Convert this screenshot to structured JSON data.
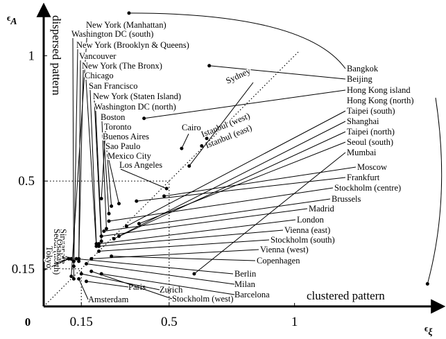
{
  "chart_data": {
    "type": "scatter",
    "x_label": {
      "symbol": "ϵ",
      "subscript": "ξ"
    },
    "y_label": {
      "symbol": "ϵ",
      "subscript": "A"
    },
    "origin_label": "0",
    "y_annotation": "dispersed pattern",
    "x_annotation": "clustered pattern",
    "xlim": [
      0,
      1.59
    ],
    "ylim": [
      0,
      1.2
    ],
    "xticks": [
      0.15,
      0.5,
      1
    ],
    "yticks": [
      0.15,
      0.5,
      1
    ],
    "grid": "dotted",
    "diagonal": true,
    "color": "#000000",
    "labels": [
      "New York (Manhattan)",
      "Washington DC (south)",
      "New York (Brooklyn & Queens)",
      "Vancouver",
      "New York (The Bronx)",
      "Chicago",
      "San Francisco",
      "New York (Staten Island)",
      "Washington DC (north)",
      "Boston",
      "Toronto",
      "Buenos Aires",
      "Sao Paulo",
      "Mexico City",
      "Los Angeles",
      "Bangkok",
      "Beijing",
      "Hong Kong island",
      "Hong Kong (north)",
      "Taipei (south)",
      "Shanghai",
      "Taipei (north)",
      "Seoul (south)",
      "Mumbai",
      "Moscow",
      "Frankfurt",
      "Stockholm (centre)",
      "Brussels",
      "Madrid",
      "London",
      "Vienna (east)",
      "Stockholm (south)",
      "Vienna (west)",
      "Copenhagen",
      "Berlin",
      "Milan",
      "Barcelona",
      "Stockholm (west)",
      "Zurich",
      "Paris",
      "Amsterdam",
      "Istanbul (west)",
      "Istanbul (east)",
      "Sydney",
      "Cairo",
      "Singapore",
      "Seoul (north)",
      "Osaka",
      "Tokyo"
    ],
    "x": [
      0.11,
      0.12,
      0.12,
      0.14,
      0.14,
      0.21,
      0.21,
      0.23,
      0.23,
      0.25,
      0.23,
      0.26,
      0.27,
      0.3,
      0.49,
      0.34,
      0.66,
      0.4,
      1.53,
      0.33,
      0.3,
      0.28,
      0.38,
      0.6,
      0.48,
      0.37,
      0.26,
      0.24,
      0.23,
      0.22,
      0.22,
      0.22,
      0.19,
      0.27,
      0.13,
      0.17,
      0.23,
      0.19,
      0.15,
      0.17,
      0.14,
      0.65,
      0.63,
      0.58,
      0.55,
      0.11,
      0.12,
      0.1,
      0.1
    ],
    "values": [
      0.12,
      0.11,
      0.16,
      0.18,
      0.19,
      0.24,
      0.25,
      0.26,
      0.28,
      0.31,
      0.43,
      0.37,
      0.4,
      0.41,
      0.47,
      1.17,
      0.96,
      0.75,
      0.09,
      0.32,
      0.28,
      0.27,
      0.33,
      0.13,
      0.44,
      0.42,
      0.34,
      0.3,
      0.28,
      0.25,
      0.24,
      0.22,
      0.19,
      0.2,
      0.19,
      0.17,
      0.13,
      0.14,
      0.13,
      0.1,
      0.11,
      0.67,
      0.64,
      0.56,
      0.63,
      0.19,
      0.18,
      0.19,
      0.19
    ]
  }
}
